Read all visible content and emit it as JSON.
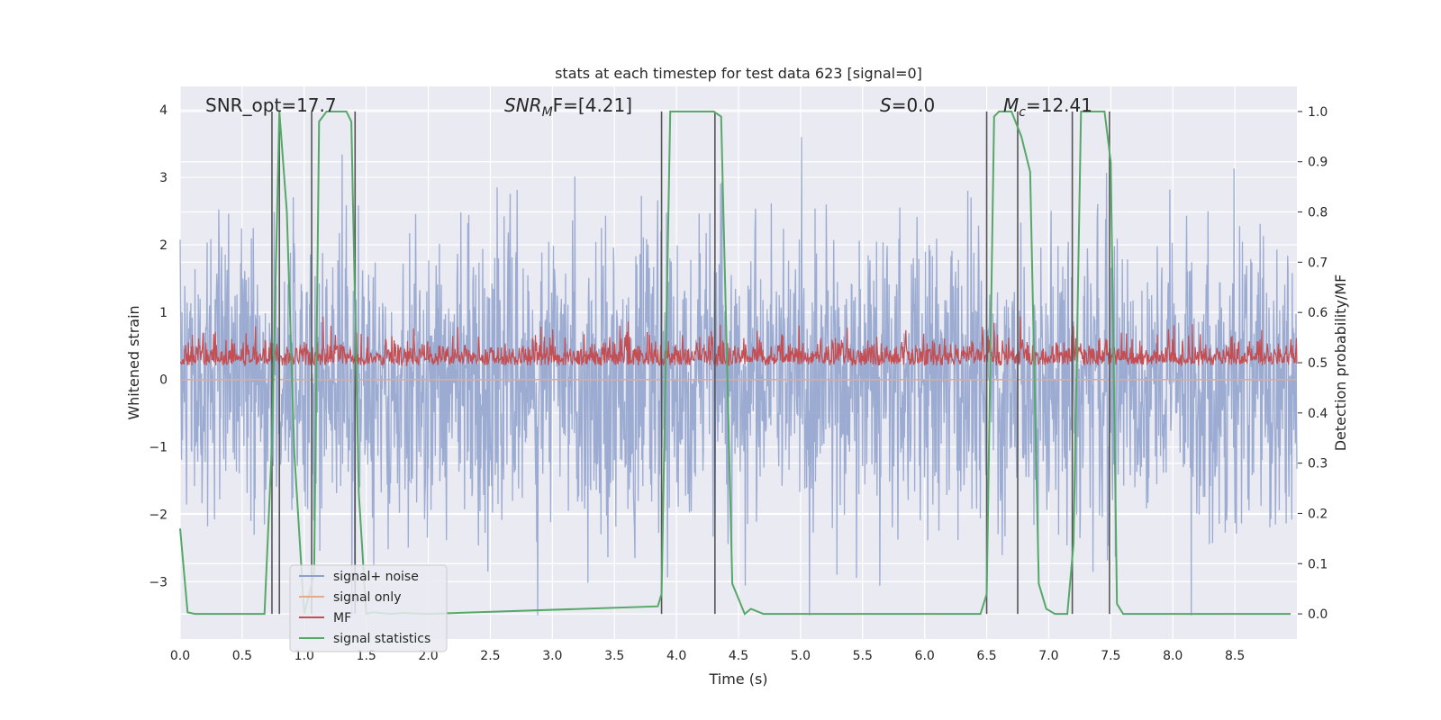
{
  "chart_data": {
    "type": "line",
    "title": "stats at each timestep for test data 623 [signal=0]",
    "xlabel": "Time (s)",
    "ylabel": "Whitened strain",
    "y2label": "Detection probability/MF",
    "xlim": [
      0,
      9.0
    ],
    "ylim": [
      -3.85,
      4.35
    ],
    "y2lim": [
      -0.05,
      1.05
    ],
    "grid": true,
    "legend_position": "lower-left",
    "x_ticks": [
      0.0,
      0.5,
      1.0,
      1.5,
      2.0,
      2.5,
      3.0,
      3.5,
      4.0,
      4.5,
      5.0,
      5.5,
      6.0,
      6.5,
      7.0,
      7.5,
      8.0,
      8.5
    ],
    "x_tick_labels": [
      "0.0",
      "0.5",
      "1.0",
      "1.5",
      "2.0",
      "2.5",
      "3.0",
      "3.5",
      "4.0",
      "4.5",
      "5.0",
      "5.5",
      "6.0",
      "6.5",
      "7.0",
      "7.5",
      "8.0",
      "8.5"
    ],
    "y_ticks": [
      4,
      3,
      2,
      1,
      0,
      -1,
      -2,
      -3
    ],
    "y_tick_labels": [
      "4",
      "3",
      "2",
      "1",
      "0",
      "−1",
      "−2",
      "−3"
    ],
    "y2_ticks": [
      1.0,
      0.9,
      0.8,
      0.7,
      0.6,
      0.5,
      0.4,
      0.3,
      0.2,
      0.1,
      0.0
    ],
    "y2_tick_labels": [
      "1.0",
      "0.9",
      "0.8",
      "0.7",
      "0.6",
      "0.5",
      "0.4",
      "0.3",
      "0.2",
      "0.1",
      "0.0"
    ],
    "annotations": {
      "snr_opt": "SNR_opt=17.7",
      "snr_mf_label": "SNR",
      "snr_mf_sub": "M",
      "snr_mf_tail": "F=[4.21]",
      "s_label": "S",
      "s_tail": "=0.0",
      "mc_label": "M",
      "mc_sub": "c",
      "mc_tail": "=12.41"
    },
    "series": [
      {
        "name": "signal+ noise",
        "color": "#8da0cb",
        "axis": "left",
        "noise_range": [
          -3.5,
          3.6
        ],
        "typical_range": [
          -2.0,
          2.4
        ]
      },
      {
        "name": "signal only",
        "color": "#e8a98a",
        "axis": "left",
        "values": "flat 0"
      },
      {
        "name": "MF",
        "color": "#c44e52",
        "axis": "left",
        "noise_range": [
          0.05,
          0.97
        ],
        "center": 0.27
      },
      {
        "name": "signal statistics",
        "color": "#55a868",
        "axis": "right",
        "x": [
          0.0,
          0.06,
          0.12,
          0.68,
          0.74,
          0.8,
          0.86,
          0.92,
          1.0,
          1.08,
          1.12,
          1.18,
          1.34,
          1.38,
          1.44,
          1.5,
          1.55,
          1.7,
          1.8,
          2.0,
          3.85,
          3.88,
          3.95,
          4.3,
          4.36,
          4.45,
          4.55,
          4.6,
          4.7,
          6.45,
          6.5,
          6.56,
          6.6,
          6.7,
          6.78,
          6.85,
          6.92,
          6.98,
          7.05,
          7.15,
          7.2,
          7.26,
          7.45,
          7.5,
          7.55,
          7.6,
          7.7,
          8.95
        ],
        "values": [
          0.17,
          0.003,
          0.0,
          0.0,
          0.34,
          1.0,
          0.8,
          0.32,
          0.0,
          0.08,
          0.98,
          1.0,
          1.0,
          0.98,
          0.24,
          0.0,
          0.003,
          0.0,
          0.002,
          0.0,
          0.015,
          0.04,
          1.0,
          1.0,
          0.99,
          0.06,
          0.0,
          0.01,
          0.0,
          0.0,
          0.04,
          0.99,
          1.0,
          1.0,
          0.95,
          0.88,
          0.06,
          0.01,
          0.0,
          0.0,
          0.14,
          1.0,
          1.0,
          0.9,
          0.02,
          0.0,
          0.0,
          0.0
        ]
      }
    ],
    "vertical_lines_x": [
      0.74,
      0.8,
      1.06,
      1.41,
      3.88,
      4.31,
      6.5,
      6.75,
      7.19,
      7.49
    ]
  }
}
